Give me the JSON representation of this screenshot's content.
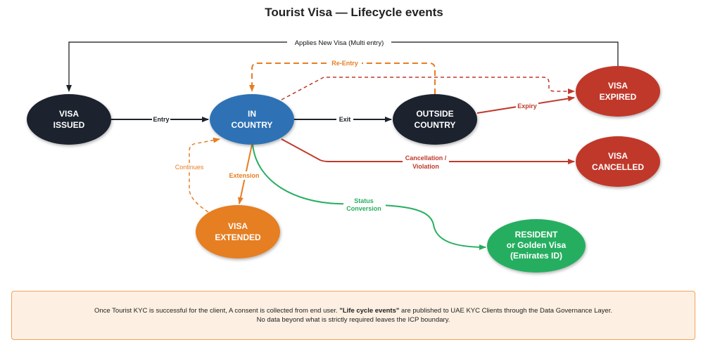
{
  "title": "Tourist Visa — Lifecycle events",
  "colors": {
    "dark": "#1d232d",
    "blue": "#2e72b5",
    "red": "#c0392b",
    "orange": "#e67e22",
    "green": "#27ae60",
    "footer_bg": "#fdf0e2",
    "footer_border": "#f0a35e"
  },
  "nodes": {
    "issued": [
      "VISA",
      "ISSUED"
    ],
    "in_country": [
      "IN",
      "COUNTRY"
    ],
    "outside": [
      "OUTSIDE",
      "COUNTRY"
    ],
    "expired": [
      "VISA",
      "EXPIRED"
    ],
    "cancelled": [
      "VISA",
      "CANCELLED"
    ],
    "extended": [
      "VISA",
      "EXTENDED"
    ],
    "resident": [
      "RESIDENT",
      "or Golden Visa",
      "(Emirates ID)"
    ]
  },
  "edges": {
    "applies_new": "Applies New Visa (Multi entry)",
    "entry": "Entry",
    "exit": "Exit",
    "re_entry": "Re-Entry",
    "expiry": "Expiry",
    "cancellation": [
      "Cancellation /",
      "Violation"
    ],
    "extension": "Extension",
    "continues": "Continues",
    "status_conversion": [
      "Status",
      "Conversion"
    ]
  },
  "footer": {
    "line1_pre": "Once Tourist KYC is successful for the client, A consent is collected from end user. ",
    "line1_bold": "\"Life cycle events\"",
    "line1_post": " are published to UAE KYC Clients through the Data Governance Layer.",
    "line2": "No data beyond what is strictly required leaves the ICP boundary."
  }
}
